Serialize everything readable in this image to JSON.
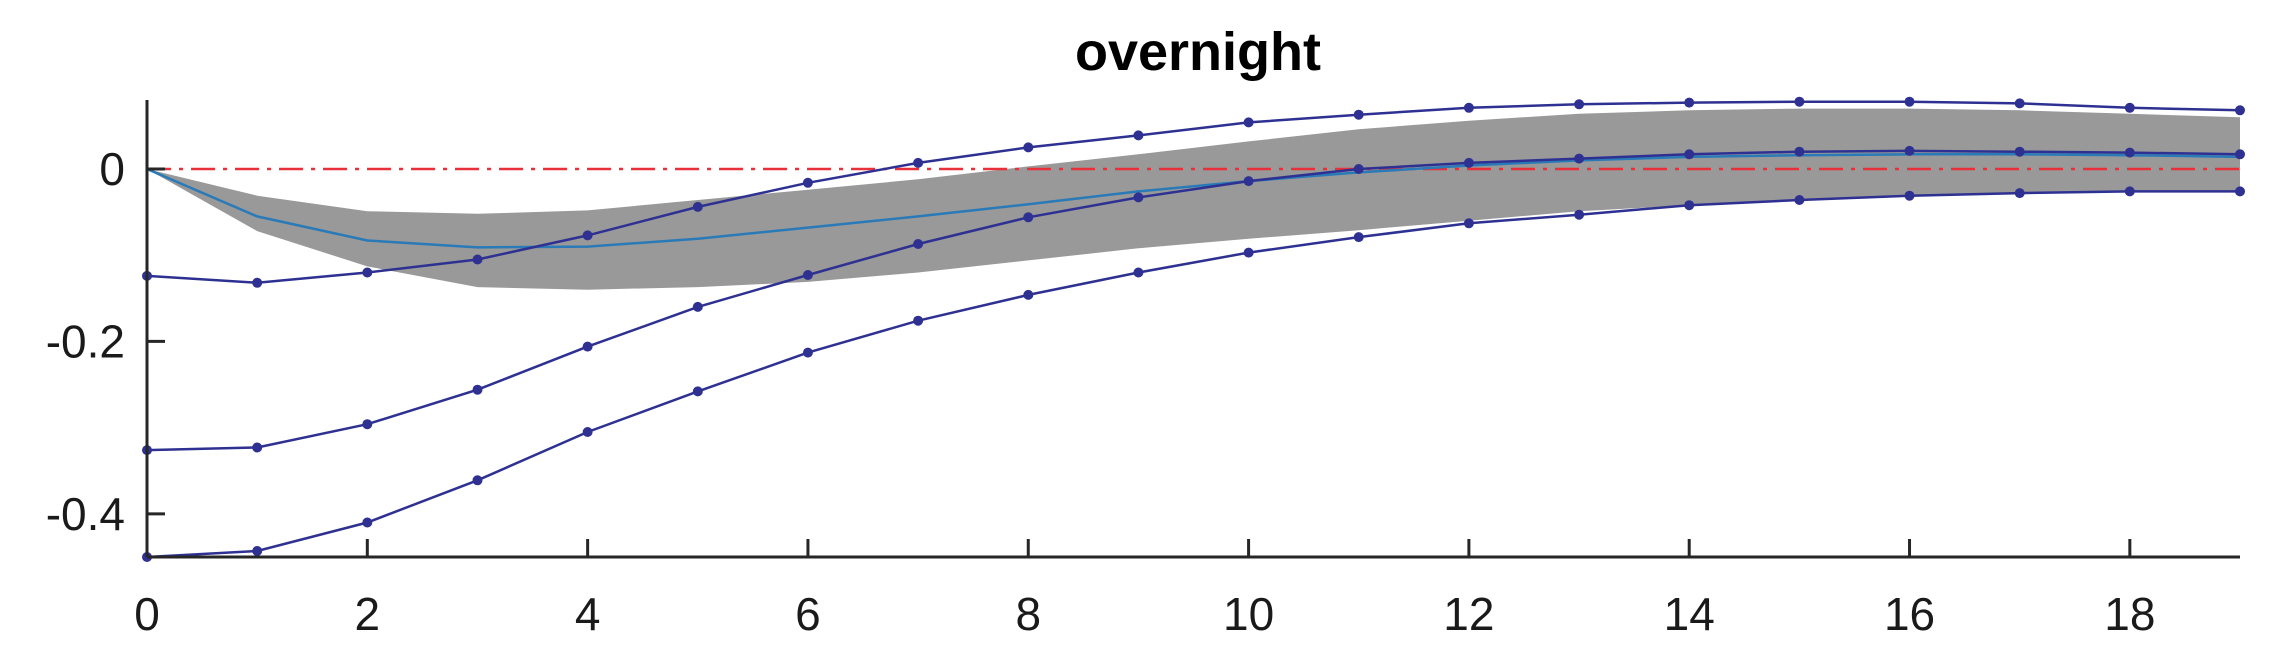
{
  "chart_data": {
    "type": "line",
    "title": "overnight",
    "xlabel": "",
    "ylabel": "",
    "xlim": [
      0,
      19
    ],
    "ylim": [
      -0.45,
      0.08
    ],
    "x_ticks": [
      0,
      2,
      4,
      6,
      8,
      10,
      12,
      14,
      16,
      18
    ],
    "y_ticks": [
      0,
      -0.2,
      -0.4
    ],
    "y_tick_labels": [
      "0",
      "-0.2",
      "-0.4"
    ],
    "grid": false,
    "legend": "none",
    "x": [
      0,
      1,
      2,
      3,
      4,
      5,
      6,
      7,
      8,
      9,
      10,
      11,
      12,
      13,
      14,
      15,
      16,
      17,
      18,
      19
    ],
    "band": {
      "upper": [
        0.0,
        -0.031,
        -0.049,
        -0.052,
        -0.048,
        -0.036,
        -0.024,
        -0.012,
        0.003,
        0.017,
        0.032,
        0.046,
        0.056,
        0.064,
        0.068,
        0.07,
        0.07,
        0.068,
        0.064,
        0.06
      ],
      "lower": [
        0.0,
        -0.072,
        -0.113,
        -0.137,
        -0.14,
        -0.137,
        -0.131,
        -0.12,
        -0.106,
        -0.092,
        -0.081,
        -0.071,
        -0.06,
        -0.049,
        -0.042,
        -0.036,
        -0.032,
        -0.029,
        -0.027,
        -0.026
      ],
      "color": "#999999"
    },
    "zero_line": {
      "y": 0,
      "color": "#e8303a",
      "style": "dash-dot"
    },
    "series": [
      {
        "color": "#2a7ab8",
        "markers": false,
        "values": [
          0.0,
          -0.055,
          -0.083,
          -0.091,
          -0.09,
          -0.081,
          -0.068,
          -0.055,
          -0.041,
          -0.026,
          -0.014,
          -0.004,
          0.004,
          0.01,
          0.014,
          0.016,
          0.017,
          0.017,
          0.016,
          0.014
        ]
      },
      {
        "color": "#2e3192",
        "markers": true,
        "values": [
          -0.124,
          -0.132,
          -0.12,
          -0.105,
          -0.077,
          -0.044,
          -0.016,
          0.007,
          0.025,
          0.039,
          0.054,
          0.063,
          0.071,
          0.075,
          0.077,
          0.078,
          0.078,
          0.076,
          0.071,
          0.068
        ]
      },
      {
        "color": "#2e3192",
        "markers": true,
        "values": [
          -0.326,
          -0.323,
          -0.296,
          -0.256,
          -0.206,
          -0.16,
          -0.123,
          -0.087,
          -0.056,
          -0.033,
          -0.014,
          0.0,
          0.007,
          0.012,
          0.017,
          0.02,
          0.021,
          0.02,
          0.019,
          0.017
        ]
      },
      {
        "color": "#2e3192",
        "markers": true,
        "values": [
          -0.45,
          -0.443,
          -0.41,
          -0.361,
          -0.305,
          -0.258,
          -0.213,
          -0.176,
          -0.146,
          -0.12,
          -0.097,
          -0.079,
          -0.063,
          -0.053,
          -0.042,
          -0.036,
          -0.031,
          -0.028,
          -0.026,
          -0.026
        ]
      }
    ]
  }
}
